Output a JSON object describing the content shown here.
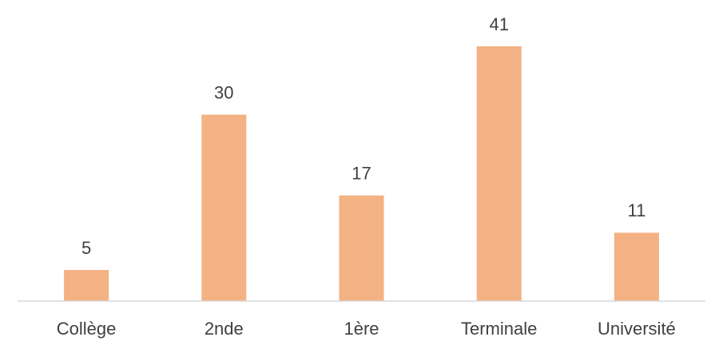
{
  "chart_data": {
    "type": "bar",
    "categories": [
      "Collège",
      "2nde",
      "1ère",
      "Terminale",
      "Université"
    ],
    "values": [
      5,
      30,
      17,
      41,
      11
    ],
    "color": "#f4b183"
  }
}
